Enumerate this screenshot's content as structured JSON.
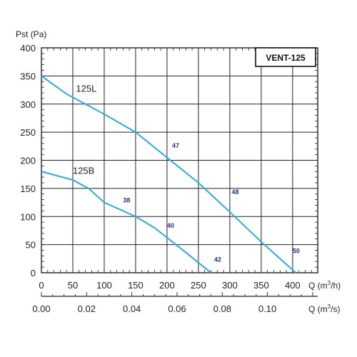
{
  "chart_data": {
    "type": "line",
    "title": "VENT-125",
    "ylabel": "Pst",
    "ylabel_unit": "(Pa)",
    "xlabel_q_prefix": "Q (m",
    "xlabel_q_exponent": "3",
    "xlabel_top_suffix": "/h)",
    "xlabel_bottom_suffix": "/s)",
    "ylim": [
      0,
      400
    ],
    "xlim_m3h": [
      0,
      440
    ],
    "grid": true,
    "y_ticks": [
      "0",
      "50",
      "100",
      "150",
      "200",
      "250",
      "300",
      "350",
      "400"
    ],
    "x_ticks_m3h": [
      "0",
      "50",
      "100",
      "150",
      "200",
      "250",
      "300",
      "350",
      "400"
    ],
    "x_ticks_m3s": [
      "0.00",
      "0.02",
      "0.04",
      "0.06",
      "0.08",
      "0.10"
    ],
    "series": [
      {
        "name": "125L",
        "x": [
          0,
          40,
          100,
          150,
          200,
          250,
          300,
          350,
          405
        ],
        "y": [
          350,
          318,
          282,
          250,
          205,
          160,
          108,
          55,
          0
        ]
      },
      {
        "name": "125B",
        "x": [
          0,
          50,
          75,
          100,
          150,
          180,
          220,
          270
        ],
        "y": [
          180,
          165,
          150,
          125,
          100,
          80,
          45,
          0
        ]
      }
    ],
    "point_labels": [
      {
        "text": "47",
        "x": 208,
        "y": 222
      },
      {
        "text": "48",
        "x": 303,
        "y": 140
      },
      {
        "text": "50",
        "x": 400,
        "y": 35
      },
      {
        "text": "38",
        "x": 130,
        "y": 125
      },
      {
        "text": "40",
        "x": 200,
        "y": 80
      },
      {
        "text": "42",
        "x": 275,
        "y": 20
      }
    ],
    "series_labels": [
      {
        "text": "125L",
        "x": 55,
        "y": 322
      },
      {
        "text": "125B",
        "x": 50,
        "y": 176
      }
    ],
    "colors": {
      "curve": "#2aaed8",
      "point_label": "#2b2f86",
      "grid": "#222222"
    }
  }
}
